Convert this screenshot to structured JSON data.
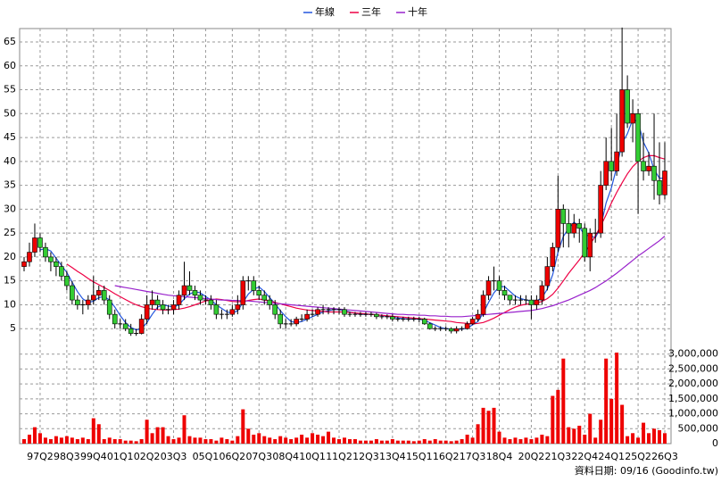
{
  "chart_data": {
    "type": "candlestick",
    "source": "資料日期: 09/16 (Goodinfo.tw)",
    "up_color": "#ee0000",
    "down_color": "#33cc33",
    "grid": true,
    "ylim": [
      2.8,
      67.8
    ],
    "yticks": [
      5,
      10,
      15,
      20,
      25,
      30,
      35,
      40,
      45,
      50,
      55,
      60,
      65
    ],
    "categories": [
      null,
      null,
      null,
      "97Q2",
      null,
      null,
      null,
      null,
      "98Q3",
      null,
      null,
      null,
      null,
      "99Q4",
      null,
      null,
      null,
      null,
      "01Q1",
      null,
      null,
      null,
      null,
      "02Q2",
      null,
      null,
      null,
      null,
      "03Q3",
      null,
      null,
      null,
      null,
      null,
      "05Q1",
      null,
      null,
      null,
      null,
      "06Q2",
      null,
      null,
      null,
      null,
      "07Q3",
      null,
      null,
      null,
      null,
      "08Q4",
      null,
      null,
      null,
      null,
      "10Q1",
      null,
      null,
      null,
      null,
      "11Q2",
      null,
      null,
      null,
      null,
      "12Q3",
      null,
      null,
      null,
      null,
      "13Q4",
      null,
      null,
      null,
      null,
      "15Q1",
      null,
      null,
      null,
      null,
      "16Q2",
      null,
      null,
      null,
      null,
      "17Q3",
      null,
      null,
      null,
      null,
      "18Q4",
      null,
      null,
      null,
      null,
      null,
      "20Q2",
      null,
      null,
      null,
      null,
      "21Q3",
      null,
      null,
      null,
      null,
      "22Q4",
      null,
      null,
      null,
      null,
      "24Q1",
      null,
      null,
      null,
      null,
      "25Q2",
      null,
      null,
      null,
      null,
      "26Q3"
    ],
    "open": [
      18,
      19,
      21,
      24,
      22,
      20,
      19,
      18,
      16,
      14,
      11,
      10,
      10,
      11,
      12,
      13,
      11,
      8,
      6,
      6,
      5,
      4,
      4,
      7,
      10,
      11,
      10,
      9,
      9,
      10,
      12,
      14,
      13,
      12,
      11,
      11,
      10,
      8,
      8,
      8,
      9,
      10,
      15,
      15,
      13,
      12,
      11,
      10,
      8,
      6,
      6,
      6,
      7,
      7,
      8,
      8,
      9,
      9,
      9,
      9,
      9,
      8,
      8,
      8,
      8,
      8,
      8,
      7.5,
      7.5,
      7.5,
      7,
      7,
      7,
      7,
      7,
      7,
      6,
      5,
      5,
      5,
      5,
      4.5,
      5,
      5,
      6,
      7,
      8,
      12,
      15,
      15,
      13,
      12,
      11,
      11,
      11,
      11,
      10,
      11,
      14,
      18,
      22,
      30,
      27,
      25,
      27,
      26,
      20,
      25,
      25,
      35,
      40,
      38,
      42,
      55,
      48,
      50,
      40,
      38,
      39,
      36,
      33
    ],
    "high": [
      20,
      23,
      27,
      25,
      23,
      21,
      20,
      19,
      17,
      15,
      12,
      11,
      12,
      16,
      14,
      14,
      12,
      9,
      7,
      7,
      6,
      5,
      8,
      12,
      13,
      12,
      11,
      10,
      11,
      13,
      19,
      17,
      14,
      13,
      12,
      12,
      11,
      9,
      9,
      10,
      12,
      16,
      16,
      16,
      14,
      13,
      12,
      11,
      9,
      7,
      7,
      7.5,
      8,
      9,
      9,
      9.5,
      10,
      9.5,
      9.5,
      9.5,
      9.5,
      8.5,
      8.5,
      8.5,
      8.5,
      8.5,
      8.3,
      8,
      8,
      8,
      7.5,
      7.5,
      7.5,
      7.5,
      7.5,
      7.3,
      6.3,
      5.5,
      5.5,
      5.5,
      5.3,
      5.5,
      5.5,
      6.5,
      7.5,
      9,
      13,
      16,
      18,
      16,
      14,
      12,
      12,
      12,
      12,
      12,
      12,
      15,
      20,
      23,
      37,
      31,
      30,
      29,
      28,
      27,
      26,
      28,
      38,
      45,
      47,
      50,
      68,
      58,
      53,
      51,
      46,
      42,
      50,
      44,
      44
    ],
    "low": [
      17,
      18,
      20,
      21,
      19,
      17,
      16,
      15,
      13,
      10,
      9,
      8,
      9,
      10,
      11,
      10,
      7,
      5,
      5,
      4.5,
      3.5,
      3.5,
      3.8,
      6,
      9,
      9,
      8,
      8,
      8,
      9,
      11,
      12,
      11,
      10,
      10,
      9,
      7,
      7,
      7,
      7.5,
      8,
      9,
      13,
      12,
      11,
      10,
      9,
      7,
      5,
      5,
      5.5,
      5.5,
      6.5,
      6.5,
      7.5,
      7.5,
      8,
      8,
      8,
      8,
      7.5,
      7.5,
      7.5,
      7.5,
      7.5,
      7.5,
      7,
      7,
      7,
      6.5,
      6.5,
      6.5,
      6.5,
      6.5,
      6.3,
      5.8,
      4.8,
      4.5,
      4.5,
      4.5,
      4,
      4,
      4.5,
      4.8,
      5.8,
      6.5,
      7.5,
      11,
      13,
      12,
      11,
      10,
      10,
      10,
      10,
      7,
      9,
      10,
      13,
      17,
      21,
      22,
      22,
      24,
      23,
      19,
      17,
      23,
      24,
      34,
      36,
      37,
      41,
      47,
      44,
      29,
      36,
      37,
      32,
      31,
      32
    ],
    "close": [
      19,
      21,
      24,
      22,
      20,
      19,
      18,
      16,
      14,
      11,
      10,
      10,
      11,
      12,
      13,
      11,
      8,
      6,
      6,
      5,
      4,
      4,
      7,
      10,
      11,
      10,
      9,
      9,
      10,
      12,
      14,
      13,
      12,
      11,
      11,
      10,
      8,
      8,
      8,
      9,
      10,
      15,
      15,
      13,
      12,
      11,
      10,
      8,
      6,
      6,
      6,
      7,
      7,
      8,
      8,
      9,
      9,
      9,
      9,
      9,
      8,
      8,
      8,
      8,
      8,
      8,
      7.5,
      7.5,
      7.5,
      7,
      7,
      7,
      7,
      7,
      7,
      6,
      5,
      5,
      5,
      5,
      4.5,
      5,
      5,
      6,
      7,
      8,
      12,
      15,
      15,
      13,
      12,
      11,
      11,
      11,
      11,
      10,
      11,
      14,
      18,
      22,
      30,
      27,
      25,
      27,
      26,
      20,
      25,
      25,
      35,
      40,
      38,
      42,
      55,
      48,
      50,
      40,
      38,
      39,
      36,
      33,
      38
    ],
    "volume": {
      "color": "#ee0000",
      "ylim": [
        0,
        3500000
      ],
      "yticks": [
        0,
        {
          "value": 500000,
          "label": "500,000"
        },
        {
          "value": 1000000,
          "label": "1,000,000"
        },
        {
          "value": 1500000,
          "label": "1,500,000"
        },
        {
          "value": 2000000,
          "label": "2,000,000"
        },
        {
          "value": 2500000,
          "label": "2,500,000"
        },
        {
          "value": 3000000,
          "label": "3,000,000"
        }
      ],
      "values": [
        150000,
        300000,
        550000,
        350000,
        200000,
        150000,
        250000,
        200000,
        250000,
        200000,
        150000,
        200000,
        150000,
        850000,
        650000,
        150000,
        200000,
        150000,
        150000,
        100000,
        100000,
        80000,
        150000,
        800000,
        350000,
        550000,
        550000,
        250000,
        150000,
        200000,
        950000,
        250000,
        200000,
        200000,
        150000,
        150000,
        100000,
        200000,
        150000,
        100000,
        250000,
        1150000,
        500000,
        300000,
        350000,
        250000,
        200000,
        150000,
        250000,
        200000,
        150000,
        200000,
        300000,
        200000,
        350000,
        300000,
        250000,
        400000,
        200000,
        150000,
        200000,
        150000,
        150000,
        100000,
        100000,
        100000,
        150000,
        100000,
        100000,
        150000,
        100000,
        100000,
        100000,
        80000,
        100000,
        150000,
        100000,
        150000,
        100000,
        100000,
        80000,
        100000,
        150000,
        300000,
        200000,
        650000,
        1200000,
        1100000,
        1200000,
        400000,
        200000,
        150000,
        200000,
        150000,
        200000,
        150000,
        200000,
        300000,
        250000,
        1600000,
        1800000,
        2850000,
        550000,
        500000,
        600000,
        300000,
        1000000,
        200000,
        800000,
        2850000,
        1500000,
        3050000,
        1300000,
        250000,
        350000,
        200000,
        700000,
        350000,
        500000,
        450000,
        350000
      ]
    },
    "series": [
      {
        "name": "年線",
        "color": "#2255dd",
        "values": [
          null,
          null,
          null,
          21.5,
          21.75,
          21.25,
          19.75,
          18.25,
          16.75,
          14.75,
          12.75,
          11.25,
          10.5,
          10.75,
          11.5,
          11.75,
          11,
          9.5,
          7.75,
          6.25,
          5.25,
          4.75,
          5,
          6.25,
          8,
          9.5,
          10,
          9.75,
          9.5,
          10,
          11.25,
          12.25,
          12.75,
          12.5,
          11.75,
          11,
          10,
          9.25,
          8.5,
          8.25,
          8.75,
          10.5,
          12.25,
          13.25,
          13.75,
          12.75,
          11.5,
          10.25,
          8.75,
          7.5,
          6.5,
          6.25,
          6.5,
          7,
          7.5,
          8,
          8.5,
          8.75,
          9,
          9,
          8.75,
          8.5,
          8.25,
          8,
          8,
          8,
          7.9,
          7.75,
          7.6,
          7.4,
          7.25,
          7.1,
          7,
          7,
          7,
          6.75,
          6.25,
          5.75,
          5.25,
          5,
          4.9,
          4.9,
          4.9,
          5.1,
          5.8,
          6.5,
          8.3,
          10.5,
          12.5,
          13.8,
          13.8,
          12.8,
          11.8,
          11.3,
          11,
          10.8,
          10.8,
          11.5,
          13.3,
          16.3,
          21,
          24.3,
          26,
          27.3,
          26.3,
          24.5,
          24.5,
          24,
          26.3,
          31.3,
          34.5,
          38.8,
          43.8,
          45.8,
          48.8,
          48.3,
          44,
          41.8,
          38.3,
          36.5,
          36.5
        ]
      },
      {
        "name": "三年",
        "color": "#ee0044",
        "values": [
          null,
          null,
          null,
          null,
          null,
          null,
          null,
          null,
          18.5,
          17.8,
          17,
          16.3,
          15.5,
          14.8,
          14.2,
          13.6,
          13,
          12.3,
          11.7,
          11.1,
          10.5,
          10,
          9.6,
          9.3,
          9.1,
          9,
          8.9,
          8.9,
          9,
          9.1,
          9.3,
          9.6,
          10,
          10.4,
          10.8,
          11,
          11.2,
          11.1,
          10.9,
          10.7,
          10.6,
          10.7,
          10.9,
          11.1,
          11.2,
          11,
          10.8,
          10.5,
          10.2,
          9.9,
          9.6,
          9.3,
          9.1,
          8.9,
          8.8,
          8.7,
          8.6,
          8.5,
          8.5,
          8.5,
          8.5,
          8.4,
          8.3,
          8.2,
          8.1,
          8,
          7.9,
          7.8,
          7.7,
          7.6,
          7.5,
          7.4,
          7.3,
          7.2,
          7.1,
          7,
          6.9,
          6.8,
          6.7,
          6.6,
          6.5,
          6.3,
          6.2,
          6.1,
          6,
          6.1,
          6.3,
          6.7,
          7.2,
          7.8,
          8.4,
          9,
          9.5,
          9.9,
          10.1,
          10.2,
          10.4,
          10.7,
          11.3,
          12.2,
          13.5,
          15,
          16.6,
          18,
          19.4,
          21,
          22.6,
          24.4,
          26.5,
          28.8,
          31.3,
          33.5,
          35.5,
          37.4,
          38.9,
          40,
          40.8,
          41.2,
          41.2,
          40.8,
          40.5
        ]
      },
      {
        "name": "十年",
        "color": "#9922cc",
        "values": [
          null,
          null,
          null,
          null,
          null,
          null,
          null,
          null,
          null,
          null,
          null,
          null,
          null,
          null,
          null,
          null,
          null,
          14,
          13.8,
          13.6,
          13.4,
          13.2,
          13,
          12.8,
          12.6,
          12.4,
          12.2,
          12,
          11.9,
          11.8,
          11.7,
          11.6,
          11.5,
          11.4,
          11.3,
          11.2,
          11.1,
          11,
          11,
          10.9,
          10.9,
          10.8,
          10.8,
          10.7,
          10.6,
          10.5,
          10.4,
          10.3,
          10.2,
          10.1,
          10,
          9.9,
          9.8,
          9.7,
          9.6,
          9.5,
          9.4,
          9.3,
          9.2,
          9.1,
          9,
          8.9,
          8.8,
          8.7,
          8.6,
          8.5,
          8.4,
          8.3,
          8.2,
          8.1,
          8,
          8,
          7.9,
          7.9,
          7.8,
          7.8,
          7.7,
          7.7,
          7.6,
          7.6,
          7.5,
          7.5,
          7.5,
          7.6,
          7.7,
          7.8,
          7.9,
          8,
          8.1,
          8.2,
          8.3,
          8.4,
          8.5,
          8.6,
          8.7,
          8.8,
          9,
          9.2,
          9.5,
          9.8,
          10.2,
          10.6,
          11,
          11.5,
          12,
          12.5,
          13,
          13.6,
          14.3,
          15,
          15.8,
          16.6,
          17.5,
          18.4,
          19.3,
          20.2,
          21,
          21.8,
          22.6,
          23.4,
          24.4
        ]
      }
    ]
  }
}
